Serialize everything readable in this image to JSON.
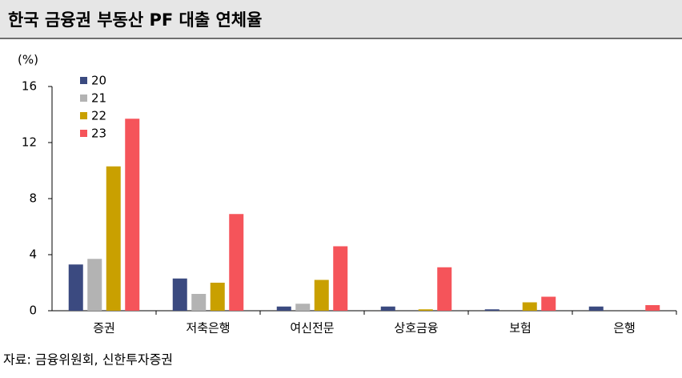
{
  "chart_data": {
    "type": "bar",
    "title": "한국 금융권 부동산 PF 대출 연체율",
    "y_unit": "(%)",
    "source": "자료: 금융위원회, 신한투자증권",
    "categories": [
      "증권",
      "저축은행",
      "여신전문",
      "상호금융",
      "보험",
      "은행"
    ],
    "series": [
      {
        "name": "20",
        "color": "#3b4a80",
        "values": [
          3.3,
          2.3,
          0.3,
          0.3,
          0.1,
          0.3
        ]
      },
      {
        "name": "21",
        "color": "#b3b3b3",
        "values": [
          3.7,
          1.2,
          0.5,
          0.0,
          0.0,
          0.0
        ]
      },
      {
        "name": "22",
        "color": "#c9a000",
        "values": [
          10.3,
          2.0,
          2.2,
          0.1,
          0.6,
          0.0
        ]
      },
      {
        "name": "23",
        "color": "#f5545a",
        "values": [
          13.7,
          6.9,
          4.6,
          3.1,
          1.0,
          0.4
        ]
      }
    ],
    "ylim": [
      0,
      16
    ],
    "yticks": [
      0,
      4,
      8,
      12,
      16
    ],
    "legend": "top-left"
  }
}
